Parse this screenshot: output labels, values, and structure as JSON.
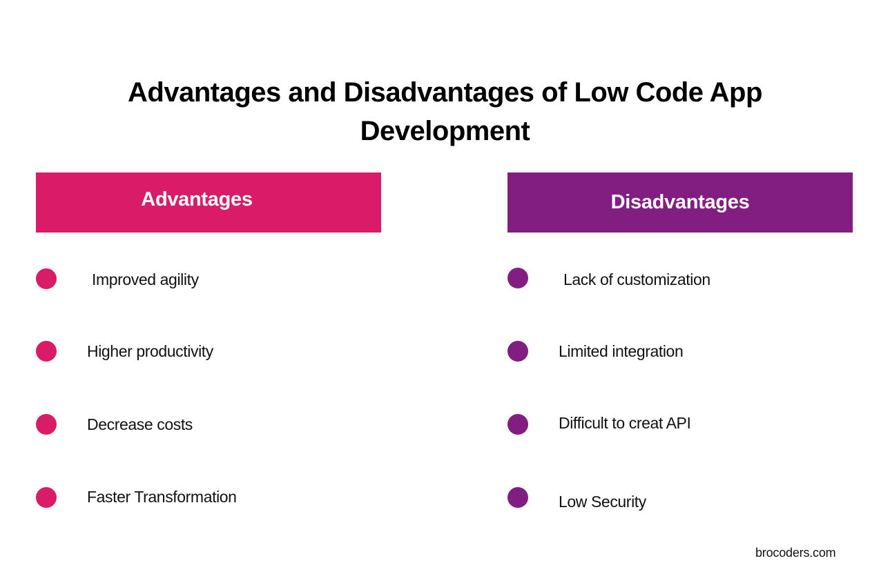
{
  "colors": {
    "advantages": "#DA1B67",
    "disadvantages": "#821E82",
    "text": "#111111",
    "background": "#FFFFFF"
  },
  "title": {
    "line1": "Advantages and Disadvantages of Low Code App",
    "line2": "Development"
  },
  "advantages": {
    "heading": "Advantages",
    "items": [
      "Improved agility",
      "Higher productivity",
      "Decrease costs",
      "Faster Transformation"
    ]
  },
  "disadvantages": {
    "heading": "Disadvantages",
    "items": [
      "Lack of customization",
      "Limited integration",
      "Difficult to creat API",
      "Low Security"
    ]
  },
  "footer": {
    "brand": "brocoders.com"
  }
}
